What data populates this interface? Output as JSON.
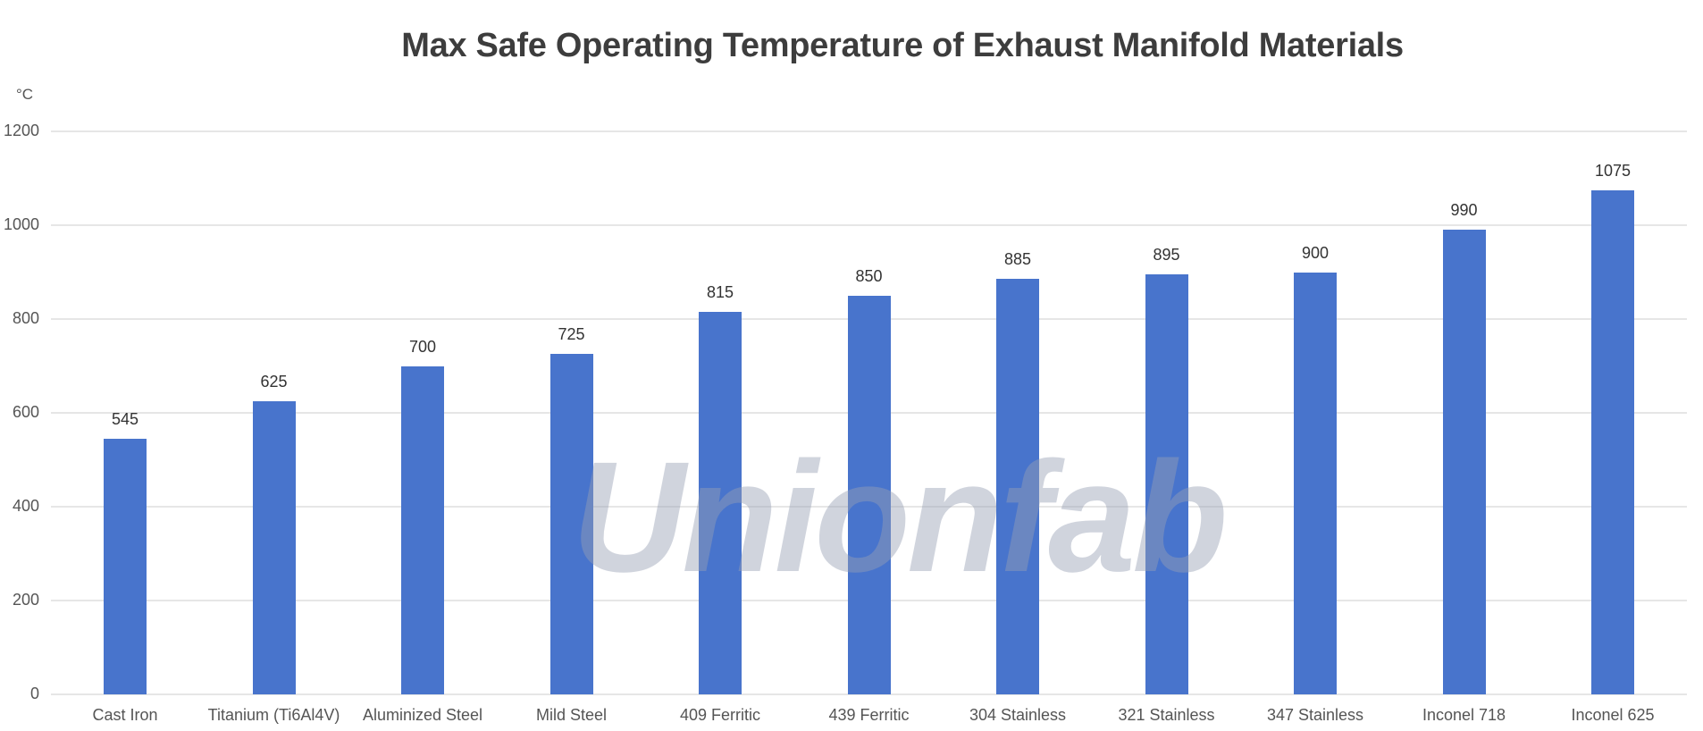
{
  "chart_data": {
    "type": "bar",
    "title": "Max Safe Operating Temperature of Exhaust Manifold Materials",
    "xlabel": "",
    "ylabel": "°C",
    "ylim": [
      0,
      1200
    ],
    "yticks": [
      0,
      200,
      400,
      600,
      800,
      1000,
      1200
    ],
    "grid": true,
    "legend": null,
    "bar_color": "#4874cc",
    "categories": [
      "Cast Iron",
      "Titanium (Ti6Al4V)",
      "Aluminized Steel",
      "Mild Steel",
      "409 Ferritic",
      "439 Ferritic",
      "304 Stainless",
      "321 Stainless",
      "347 Stainless",
      "Inconel 718",
      "Inconel 625"
    ],
    "values": [
      545,
      625,
      700,
      725,
      815,
      850,
      885,
      895,
      900,
      990,
      1075
    ],
    "data_labels": [
      "545",
      "625",
      "700",
      "725",
      "815",
      "850",
      "885",
      "895",
      "900",
      "990",
      "1075"
    ]
  },
  "watermark": "Unionfab"
}
